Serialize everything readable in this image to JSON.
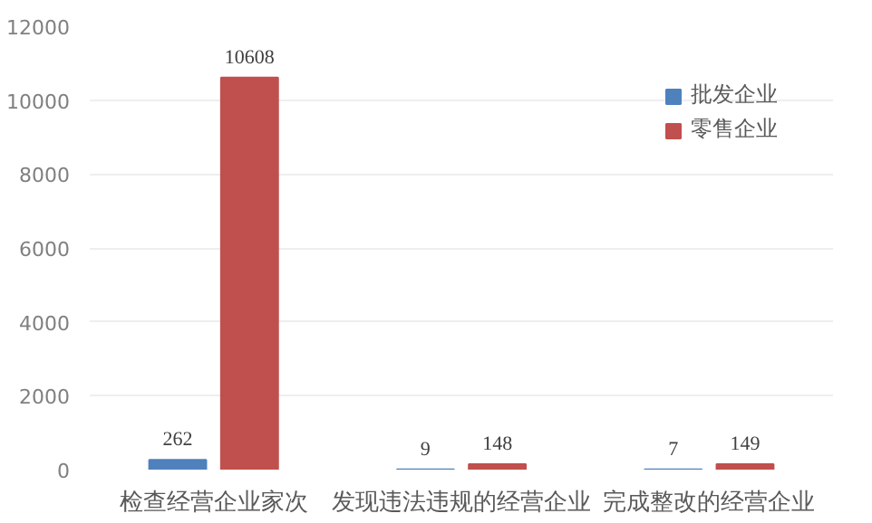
{
  "chart_data": {
    "type": "bar",
    "categories": [
      "检查经营企业家次",
      "发现违法违规的经营企业",
      "完成整改的经营企业"
    ],
    "series": [
      {
        "name": "批发企业",
        "color": "#4f81bd",
        "values": [
          262,
          9,
          7
        ]
      },
      {
        "name": "零售企业",
        "color": "#c0504d",
        "values": [
          10608,
          148,
          149
        ]
      }
    ],
    "ylim": [
      0,
      12000
    ],
    "yticks": [
      0,
      2000,
      4000,
      6000,
      8000,
      10000,
      12000
    ],
    "grid": "y",
    "legend": "top right",
    "data_labels": true
  }
}
